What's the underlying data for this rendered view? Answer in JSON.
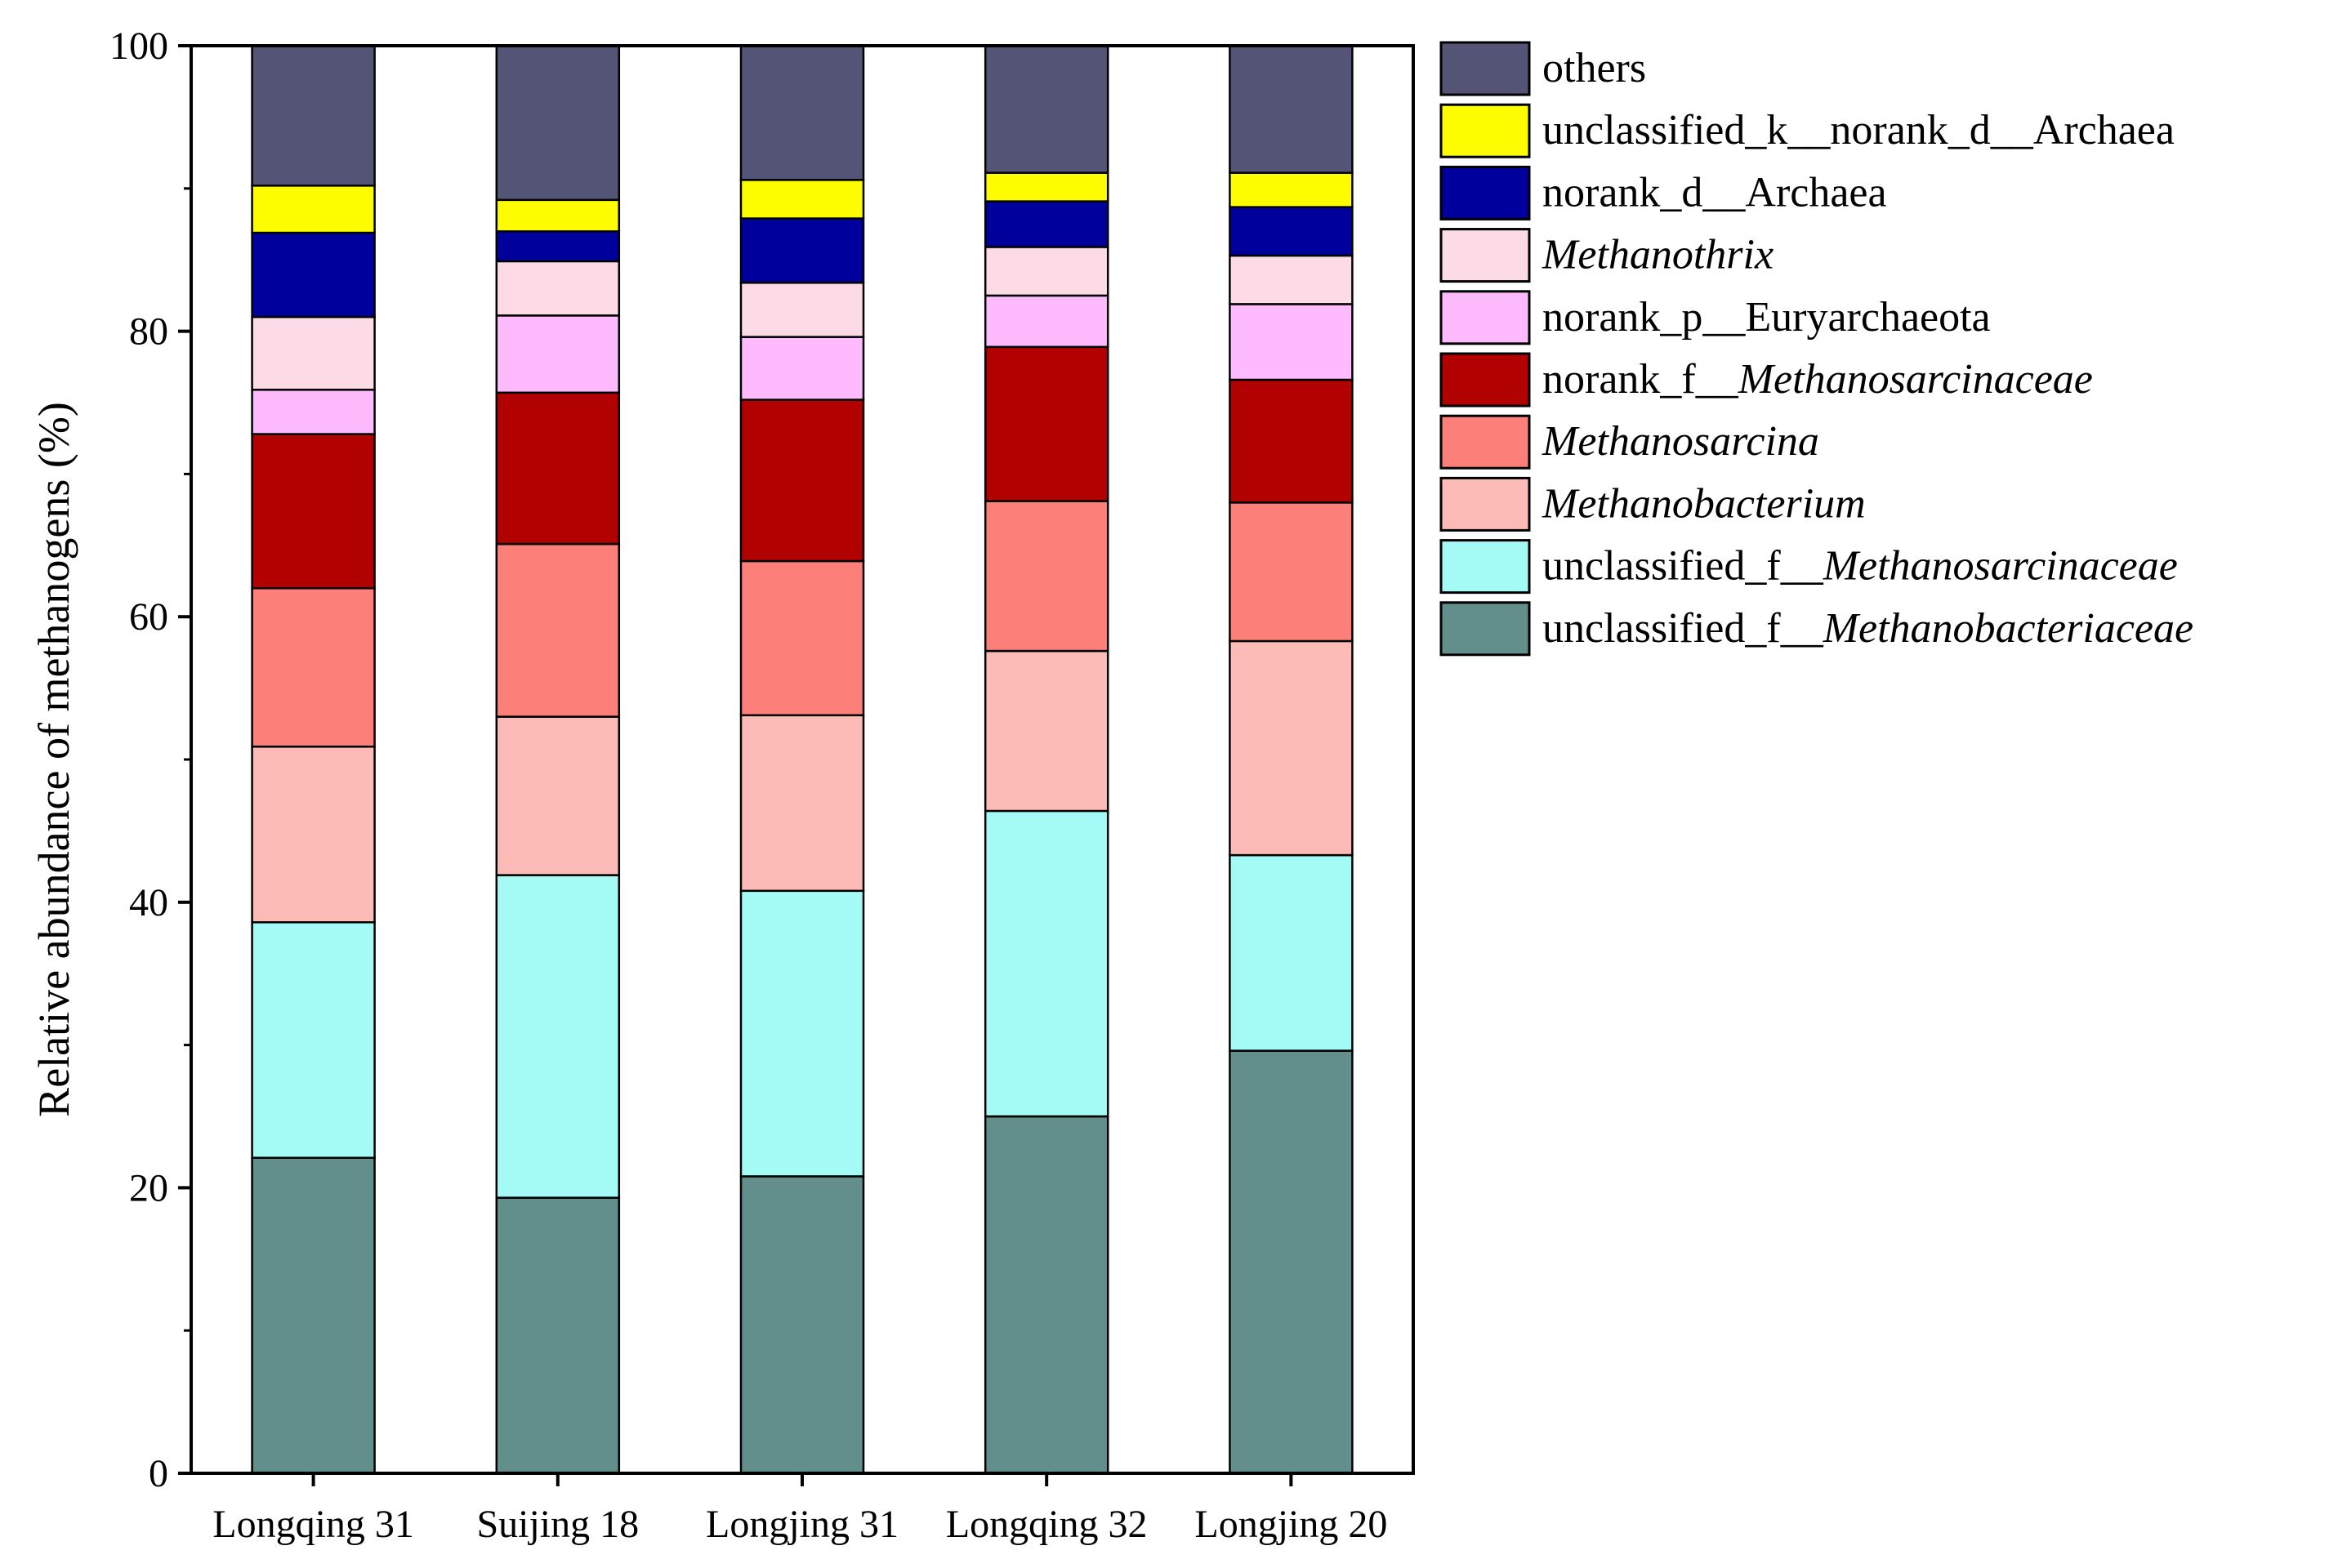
{
  "chart_data": {
    "type": "stacked-bar",
    "title": "",
    "xlabel": "",
    "ylabel": "Relative abundance of methanogens (%)",
    "ylim": [
      0,
      100
    ],
    "yticks": [
      "0",
      "20",
      "40",
      "60",
      "80",
      "100"
    ],
    "categories": [
      "Longqing 31",
      "Suijing 18",
      "Longjing 31",
      "Longqing 32",
      "Longjing 20"
    ],
    "series": [
      {
        "name": "unclassified_f__Methanobacteriaceae",
        "prefix": "unclassified_f__",
        "italic_part": "Methanobacteriaceae",
        "color": "#628E8B",
        "values": [
          22.1,
          19.3,
          20.8,
          25.0,
          29.6
        ]
      },
      {
        "name": "unclassified_f__Methanosarcinaceae",
        "prefix": "unclassified_f__",
        "italic_part": "Methanosarcinaceae",
        "color": "#A4FBF6",
        "values": [
          16.5,
          22.6,
          20.0,
          21.4,
          13.7
        ]
      },
      {
        "name": "Methanobacterium",
        "prefix": "",
        "italic_part": "Methanobacterium",
        "color": "#FDBBB8",
        "values": [
          12.3,
          11.1,
          12.3,
          11.2,
          15.0
        ]
      },
      {
        "name": "Methanosarcina",
        "prefix": "",
        "italic_part": "Methanosarcina",
        "color": "#FD7F79",
        "values": [
          11.1,
          12.1,
          10.8,
          10.5,
          9.7
        ]
      },
      {
        "name": "norank_f__Methanosarcinaceae",
        "prefix": "norank_f__",
        "italic_part": "Methanosarcinaceae",
        "color": "#B20101",
        "values": [
          10.8,
          10.6,
          11.3,
          10.8,
          8.6
        ]
      },
      {
        "name": "norank_p__Euryarchaeota",
        "prefix": "norank_p__Euryarchaeota",
        "italic_part": "",
        "color": "#FDBAFD",
        "values": [
          3.1,
          5.4,
          4.4,
          3.6,
          5.3
        ]
      },
      {
        "name": "Methanothrix",
        "prefix": "",
        "italic_part": "Methanothrix",
        "color": "#FDDBE6",
        "values": [
          5.1,
          3.8,
          3.8,
          3.4,
          3.4
        ]
      },
      {
        "name": "norank_d__Archaea",
        "prefix": "norank_d__Archaea",
        "italic_part": "",
        "color": "#00009C",
        "values": [
          5.9,
          2.1,
          4.5,
          3.2,
          3.4
        ]
      },
      {
        "name": "unclassified_k__norank_d__Archaea",
        "prefix": "unclassified_k__norank_d__Archaea",
        "italic_part": "",
        "color": "#FDFD00",
        "values": [
          3.3,
          2.2,
          2.7,
          2.0,
          2.4
        ]
      },
      {
        "name": "others",
        "prefix": "others",
        "italic_part": "",
        "color": "#535476",
        "values": [
          9.8,
          10.8,
          9.4,
          8.9,
          8.9
        ]
      }
    ],
    "legend_position": "right",
    "grid": false
  }
}
